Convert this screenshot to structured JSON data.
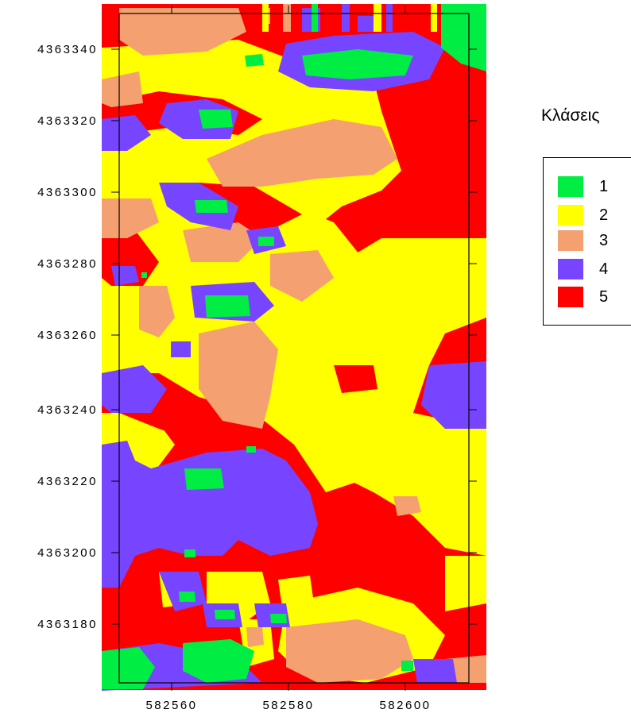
{
  "legend": {
    "title": "Κλάσεις",
    "items": [
      {
        "label": "1",
        "color": "#00ee44"
      },
      {
        "label": "2",
        "color": "#ffff00"
      },
      {
        "label": "3",
        "color": "#f5a070"
      },
      {
        "label": "4",
        "color": "#7744ff"
      },
      {
        "label": "5",
        "color": "#ff0000"
      }
    ]
  },
  "axes": {
    "x_ticks": [
      "582560",
      "582580",
      "582600"
    ],
    "y_ticks": [
      "4363340",
      "4363320",
      "4363300",
      "4363280",
      "4363260",
      "4363240",
      "4363220",
      "4363200",
      "4363180"
    ]
  }
}
